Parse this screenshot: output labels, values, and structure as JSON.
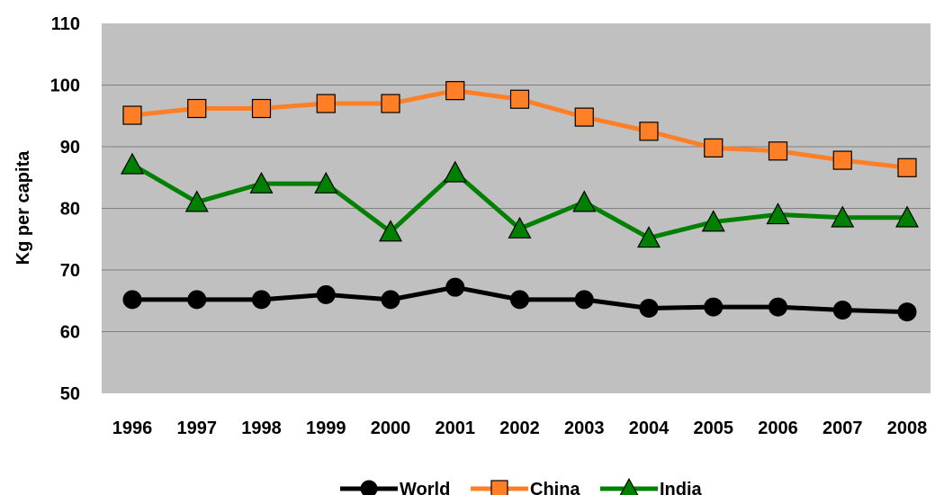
{
  "chart_data": {
    "type": "line",
    "title": "",
    "xlabel": "",
    "ylabel": "Kg per capita",
    "categories": [
      "1996",
      "1997",
      "1998",
      "1999",
      "2000",
      "2001",
      "2002",
      "2003",
      "2004",
      "2005",
      "2006",
      "2007",
      "2008"
    ],
    "ylim": [
      50,
      110
    ],
    "yticks": [
      50,
      60,
      70,
      80,
      90,
      100,
      110
    ],
    "grid": true,
    "legend_position": "bottom",
    "plot_background": "#C0C0C0",
    "series": [
      {
        "name": "World",
        "color": "#000000",
        "marker": "circle",
        "marker_fill": "#000000",
        "values": [
          65.2,
          65.2,
          65.2,
          66.0,
          65.2,
          67.2,
          65.2,
          65.2,
          63.8,
          64.0,
          64.0,
          63.5,
          63.2
        ]
      },
      {
        "name": "China",
        "color": "#FF7F27",
        "marker": "square",
        "marker_fill": "#FF7F27",
        "values": [
          95.1,
          96.2,
          96.2,
          97.0,
          97.0,
          99.1,
          97.7,
          94.8,
          92.5,
          89.8,
          89.3,
          87.8,
          86.6
        ]
      },
      {
        "name": "India",
        "color": "#008000",
        "marker": "triangle",
        "marker_fill": "#008000",
        "values": [
          87.1,
          81.0,
          84.0,
          84.0,
          76.2,
          85.8,
          76.7,
          81.0,
          75.2,
          77.8,
          79.0,
          78.5,
          78.5
        ]
      }
    ]
  }
}
